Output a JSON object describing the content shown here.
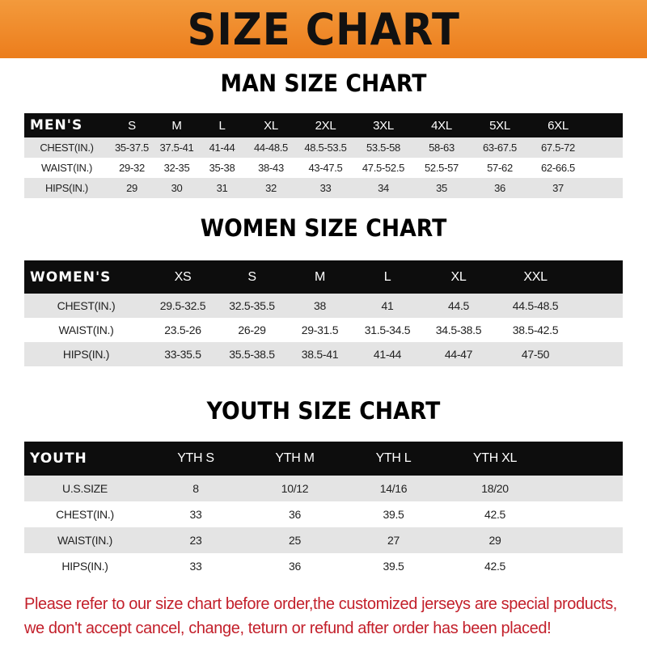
{
  "banner_title": "SIZE CHART",
  "colors": {
    "banner": "#ee8520",
    "header_row": "#0d0d0d",
    "stripe": "#e4e4e4",
    "note": "#c3202b"
  },
  "men": {
    "title": "MAN SIZE CHART",
    "header": [
      "MEN'S",
      "S",
      "M",
      "L",
      "XL",
      "2XL",
      "3XL",
      "4XL",
      "5XL",
      "6XL"
    ],
    "rows": [
      [
        "CHEST(IN.)",
        "35-37.5",
        "37.5-41",
        "41-44",
        "44-48.5",
        "48.5-53.5",
        "53.5-58",
        "58-63",
        "63-67.5",
        "67.5-72"
      ],
      [
        "WAIST(IN.)",
        "29-32",
        "32-35",
        "35-38",
        "38-43",
        "43-47.5",
        "47.5-52.5",
        "52.5-57",
        "57-62",
        "62-66.5"
      ],
      [
        "HIPS(IN.)",
        "29",
        "30",
        "31",
        "32",
        "33",
        "34",
        "35",
        "36",
        "37"
      ]
    ]
  },
  "women": {
    "title": "WOMEN SIZE CHART",
    "header": [
      "WOMEN'S",
      "XS",
      "S",
      "M",
      "L",
      "XL",
      "XXL"
    ],
    "rows": [
      [
        "CHEST(IN.)",
        "29.5-32.5",
        "32.5-35.5",
        "38",
        "41",
        "44.5",
        "44.5-48.5"
      ],
      [
        "WAIST(IN.)",
        "23.5-26",
        "26-29",
        "29-31.5",
        "31.5-34.5",
        "34.5-38.5",
        "38.5-42.5"
      ],
      [
        "HIPS(IN.)",
        "33-35.5",
        "35.5-38.5",
        "38.5-41",
        "41-44",
        "44-47",
        "47-50"
      ]
    ]
  },
  "youth": {
    "title": "YOUTH SIZE CHART",
    "header": [
      "YOUTH",
      "YTH S",
      "YTH M",
      "YTH L",
      "YTH XL"
    ],
    "rows": [
      [
        "U.S.SIZE",
        "8",
        "10/12",
        "14/16",
        "18/20"
      ],
      [
        "CHEST(IN.)",
        "33",
        "36",
        "39.5",
        "42.5"
      ],
      [
        "WAIST(IN.)",
        "23",
        "25",
        "27",
        "29"
      ],
      [
        "HIPS(IN.)",
        "33",
        "36",
        "39.5",
        "42.5"
      ]
    ]
  },
  "note": {
    "line1": "Please refer to our size chart before order,the customized jerseys are special products,",
    "line2": "we don't accept cancel, change, teturn or refund after order has been placed!"
  }
}
